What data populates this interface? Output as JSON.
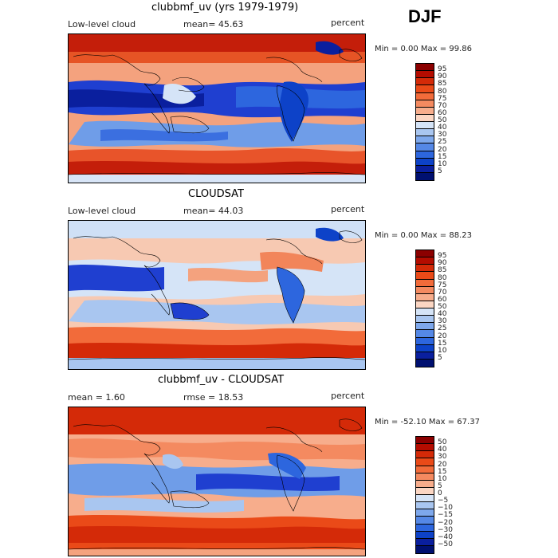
{
  "season": "DJF",
  "panels": [
    {
      "title": "clubbmf_uv (yrs 1979-1979)",
      "left_label": "Low-level cloud",
      "mid_label": "mean=  45.63",
      "right_label": "percent",
      "minmax": "Min =    0.00 Max =   99.86",
      "colorbar": {
        "labels": [
          "95",
          "90",
          "85",
          "80",
          "75",
          "70",
          "60",
          "50",
          "40",
          "30",
          "25",
          "20",
          "15",
          "10",
          "5"
        ],
        "colors": [
          "#8b0000",
          "#b40c00",
          "#d42a08",
          "#ea4a18",
          "#f26b3a",
          "#f48a60",
          "#f7ad8c",
          "#fbd6c3",
          "#d5e4f7",
          "#a9c6f0",
          "#7ea8ec",
          "#5588e6",
          "#2d66de",
          "#0d42c8",
          "#0a1f9e",
          "#001070"
        ]
      }
    },
    {
      "title": "CLOUDSAT",
      "left_label": "Low-level cloud",
      "mid_label": "mean=  44.03",
      "right_label": "percent",
      "minmax": "Min =    0.00 Max =   88.23",
      "colorbar": {
        "labels": [
          "95",
          "90",
          "85",
          "80",
          "75",
          "70",
          "60",
          "50",
          "40",
          "30",
          "25",
          "20",
          "15",
          "10",
          "5"
        ],
        "colors": [
          "#8b0000",
          "#b40c00",
          "#d42a08",
          "#ea4a18",
          "#f26b3a",
          "#f48a60",
          "#f7ad8c",
          "#fbd6c3",
          "#d5e4f7",
          "#a9c6f0",
          "#7ea8ec",
          "#5588e6",
          "#2d66de",
          "#0d42c8",
          "#0a1f9e",
          "#001070"
        ]
      }
    },
    {
      "title": "clubbmf_uv - CLOUDSAT",
      "left_label": "mean =    1.60",
      "mid_label": "rmse =  18.53",
      "right_label": "percent",
      "minmax": "Min = -52.10 Max =  67.37",
      "colorbar": {
        "labels": [
          "50",
          "40",
          "30",
          "20",
          "15",
          "10",
          "5",
          "0",
          "−5",
          "−10",
          "−15",
          "−20",
          "−30",
          "−40",
          "−50"
        ],
        "colors": [
          "#8b0000",
          "#b40c00",
          "#d42a08",
          "#ea4a18",
          "#f26b3a",
          "#f48a60",
          "#f7ad8c",
          "#fbd6c3",
          "#d5e4f7",
          "#a9c6f0",
          "#7ea8ec",
          "#5588e6",
          "#2d66de",
          "#0d42c8",
          "#0a1f9e",
          "#001070"
        ]
      }
    }
  ]
}
